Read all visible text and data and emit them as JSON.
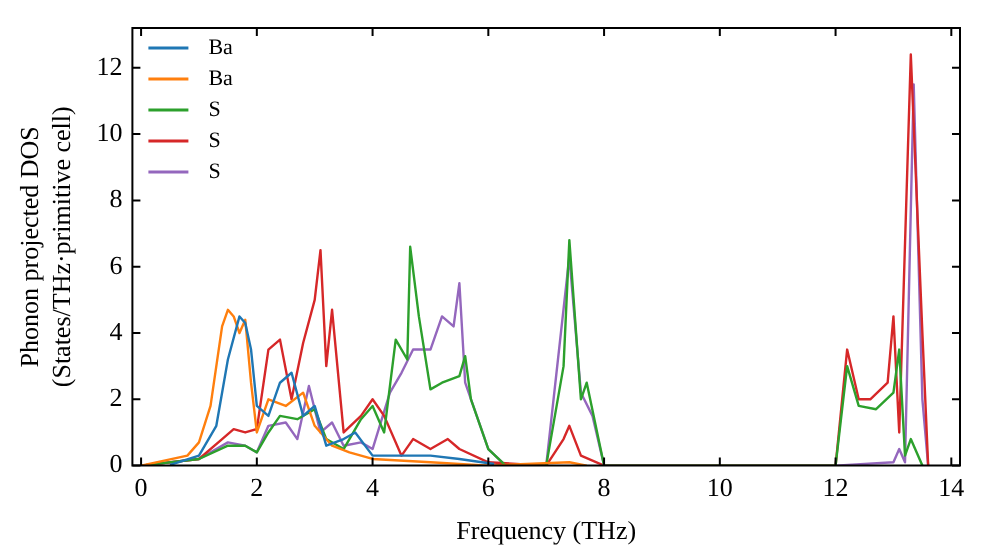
{
  "chart_data": {
    "type": "line",
    "xlabel": "Frequency (THz)",
    "ylabel": "Phonon projected DOS\n(States/THz·primitive cell)",
    "xlim": [
      -0.15,
      14.15
    ],
    "ylim": [
      0,
      13.2
    ],
    "xticks": [
      0,
      2,
      4,
      6,
      8,
      10,
      12,
      14
    ],
    "yticks": [
      0,
      2,
      4,
      6,
      8,
      10,
      12
    ],
    "grid": false,
    "legend": "top left",
    "marker": "none",
    "line_style": "solid",
    "series": [
      {
        "name": "Ba",
        "color": "#1f77b4",
        "x": [
          0.5,
          1,
          1.3,
          1.5,
          1.7,
          1.8,
          1.9,
          2.0,
          2.2,
          2.4,
          2.6,
          2.8,
          3.0,
          3.2,
          3.5,
          3.7,
          4.0,
          4.5,
          5,
          5.5,
          6.1
        ],
        "values": [
          0.02,
          0.3,
          1.2,
          3.2,
          4.5,
          4.3,
          3.5,
          1.8,
          1.5,
          2.5,
          2.8,
          1.5,
          1.8,
          0.6,
          0.8,
          1.0,
          0.3,
          0.3,
          0.3,
          0.2,
          0.05
        ]
      },
      {
        "name": "Ba",
        "color": "#ff7f0e",
        "x": [
          0,
          0.8,
          1,
          1.2,
          1.4,
          1.5,
          1.6,
          1.7,
          1.8,
          1.9,
          2.0,
          2.2,
          2.5,
          2.8,
          3,
          3.3,
          3.6,
          4,
          5,
          6,
          7.4,
          7.7
        ],
        "values": [
          0,
          0.3,
          0.7,
          1.8,
          4.2,
          4.7,
          4.5,
          4.0,
          4.4,
          2.5,
          1.0,
          2.0,
          1.8,
          2.2,
          1.2,
          0.6,
          0.4,
          0.2,
          0.1,
          0,
          0.1,
          0
        ]
      },
      {
        "name": "S",
        "color": "#2ca02c",
        "x": [
          0,
          1,
          1.5,
          1.8,
          2,
          2.2,
          2.4,
          2.7,
          3,
          3.2,
          3.5,
          3.8,
          4,
          4.2,
          4.4,
          4.6,
          4.65,
          4.8,
          5,
          5.2,
          5.5,
          5.6,
          5.7,
          6,
          6.3,
          7,
          7.3,
          7.4,
          7.6,
          7.7,
          8,
          12,
          12.2,
          12.4,
          12.7,
          13,
          13.1,
          13.2,
          13.3,
          13.5
        ],
        "values": [
          0,
          0.2,
          0.6,
          0.6,
          0.4,
          1.0,
          1.5,
          1.4,
          1.7,
          0.8,
          0.5,
          1.4,
          1.8,
          1.0,
          3.8,
          3.2,
          6.6,
          4.5,
          2.3,
          2.5,
          2.7,
          3.3,
          2.0,
          0.5,
          0,
          0,
          3.0,
          6.8,
          2.0,
          2.5,
          0,
          0,
          3.0,
          1.8,
          1.7,
          2.2,
          3.5,
          0.3,
          0.8,
          0
        ]
      },
      {
        "name": "S",
        "color": "#d62728",
        "x": [
          0,
          1,
          1.4,
          1.6,
          1.8,
          2.0,
          2.2,
          2.4,
          2.6,
          2.8,
          3.0,
          3.1,
          3.2,
          3.3,
          3.5,
          3.8,
          4.0,
          4.2,
          4.5,
          4.7,
          5,
          5.3,
          5.5,
          6,
          7,
          7.3,
          7.4,
          7.6,
          8,
          12,
          12.2,
          12.4,
          12.6,
          12.9,
          13.0,
          13.1,
          13.3,
          13.5,
          13.6
        ],
        "values": [
          0,
          0.2,
          0.8,
          1.1,
          1.0,
          1.1,
          3.5,
          3.8,
          2.0,
          3.7,
          5.0,
          6.5,
          3.0,
          4.7,
          1.0,
          1.5,
          2.0,
          1.5,
          0.3,
          0.8,
          0.5,
          0.8,
          0.5,
          0.1,
          0,
          0.8,
          1.2,
          0.3,
          0,
          0,
          3.5,
          2.0,
          2.0,
          2.5,
          4.5,
          1.0,
          12.4,
          4.0,
          0
        ]
      },
      {
        "name": "S",
        "color": "#9467bd",
        "x": [
          0,
          1,
          1.5,
          1.8,
          2.0,
          2.2,
          2.5,
          2.7,
          2.9,
          3.1,
          3.3,
          3.5,
          3.8,
          4.0,
          4.3,
          4.5,
          4.7,
          5,
          5.2,
          5.4,
          5.5,
          5.6,
          6,
          6.3,
          7,
          7.4,
          7.6,
          7.8,
          8,
          12,
          13,
          13.1,
          13.2,
          13.35,
          13.5,
          13.6
        ],
        "values": [
          0,
          0.2,
          0.7,
          0.6,
          0.4,
          1.2,
          1.3,
          0.8,
          2.4,
          1.0,
          1.3,
          0.6,
          0.7,
          0.5,
          2.2,
          2.8,
          3.5,
          3.5,
          4.5,
          4.2,
          5.5,
          2.5,
          0.5,
          0,
          0,
          6.3,
          2.2,
          1.5,
          0,
          0,
          0.1,
          0.5,
          0.1,
          11.5,
          2.0,
          0
        ]
      }
    ]
  }
}
